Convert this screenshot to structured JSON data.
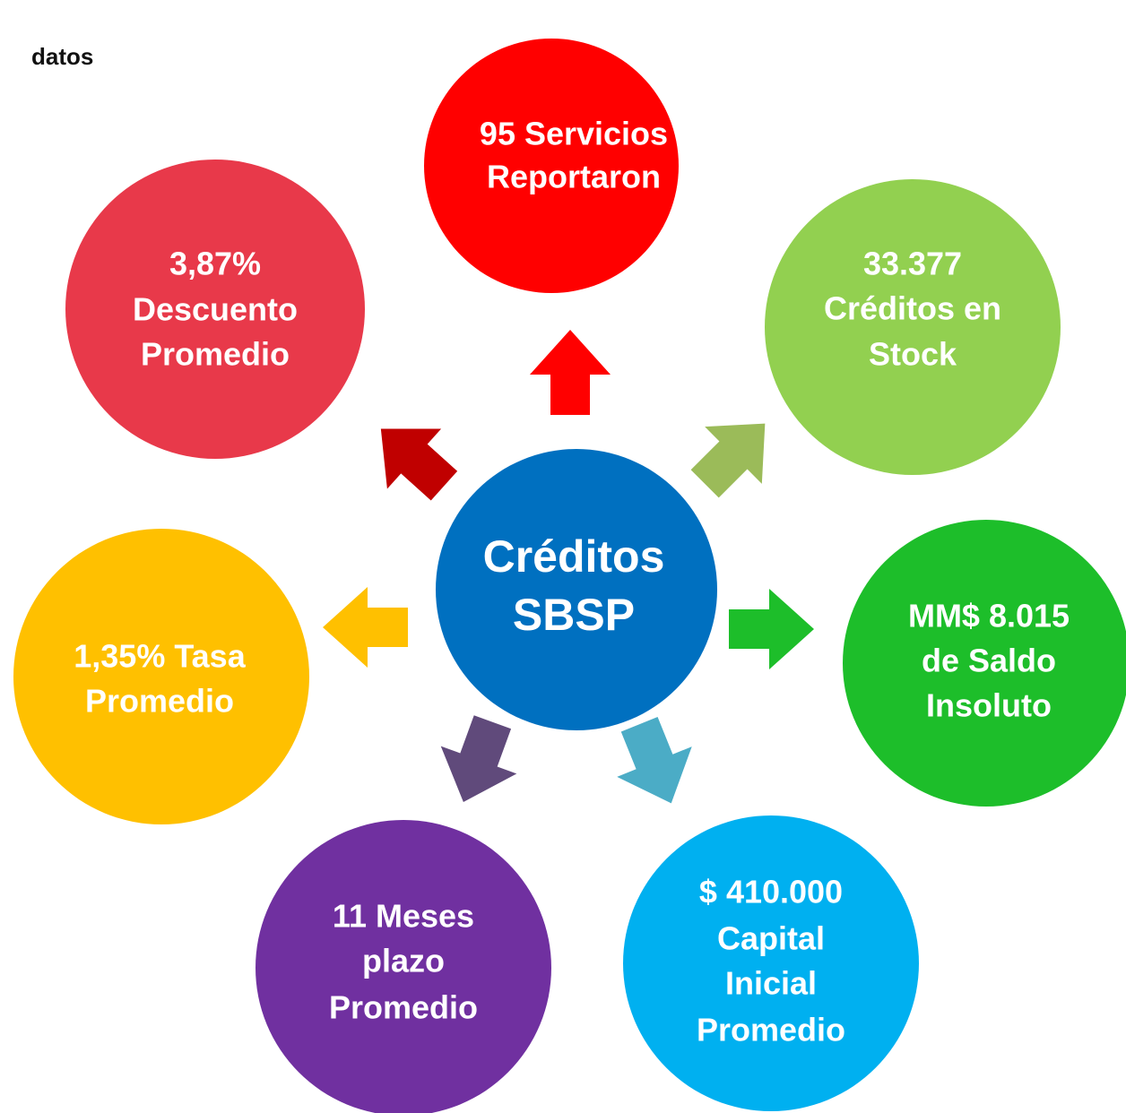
{
  "header": {
    "title": "datos"
  },
  "center": {
    "lines": [
      "Créditos",
      "SBSP"
    ]
  },
  "nodes": [
    {
      "lines": [
        "95 Servicios",
        "Reportaron"
      ]
    },
    {
      "lines": [
        "33.377",
        "Créditos en",
        "Stock"
      ]
    },
    {
      "lines": [
        "MM$ 8.015",
        "de Saldo",
        "Insoluto"
      ]
    },
    {
      "lines": [
        "$ 410.000",
        "Capital",
        "Inicial",
        "Promedio"
      ]
    },
    {
      "lines": [
        "11 Meses",
        "plazo",
        "Promedio"
      ]
    },
    {
      "lines": [
        "1,35% Tasa",
        "Promedio"
      ]
    },
    {
      "lines": [
        "3,87%",
        "Descuento",
        "Promedio"
      ]
    }
  ]
}
